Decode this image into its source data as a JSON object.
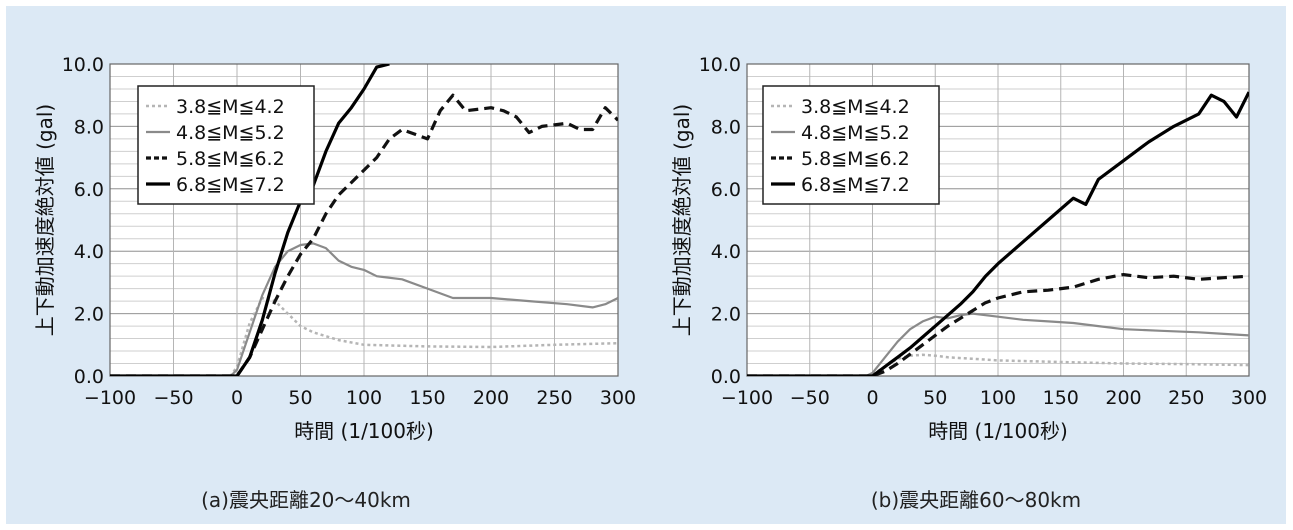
{
  "panels": [
    {
      "caption": "(a)震央距離20～40km",
      "ylabel": "上下動加速度絶対値 (gal)",
      "xlabel": "時間 (1/100秒)",
      "xticks": [
        "−100",
        "−50",
        "0",
        "50",
        "100",
        "150",
        "200",
        "250",
        "300"
      ],
      "yticks": [
        "0.0",
        "2.0",
        "4.0",
        "6.0",
        "8.0",
        "10.0"
      ]
    },
    {
      "caption": "(b)震央距離60～80km",
      "ylabel": "上下動加速度絶対値 (gal)",
      "xlabel": "時間 (1/100秒)",
      "xticks": [
        "−100",
        "−50",
        "0",
        "50",
        "100",
        "150",
        "200",
        "250",
        "300"
      ],
      "yticks": [
        "0.0",
        "2.0",
        "4.0",
        "6.0",
        "8.0",
        "10.0"
      ]
    }
  ],
  "chart_data": [
    {
      "type": "line",
      "xlabel": "時間 (1/100秒)",
      "ylabel": "上下動加速度絶対値 (gal)",
      "xlim": [
        -100,
        300
      ],
      "ylim": [
        0,
        10
      ],
      "grid": true,
      "legend_position": "top-left",
      "series": [
        {
          "name": "3.8≦M≦4.2",
          "style": "dotted-light",
          "color": "#b5b5b5",
          "x": [
            -100,
            -5,
            0,
            10,
            20,
            30,
            40,
            50,
            60,
            80,
            100,
            150,
            200,
            250,
            300
          ],
          "y": [
            0,
            0,
            0.3,
            1.7,
            2.5,
            2.4,
            2.0,
            1.6,
            1.4,
            1.15,
            1.0,
            0.95,
            0.93,
            1.0,
            1.05
          ]
        },
        {
          "name": "4.8≦M≦5.2",
          "style": "solid-gray",
          "color": "#8a8a8a",
          "x": [
            -100,
            -5,
            0,
            10,
            20,
            30,
            40,
            50,
            60,
            70,
            80,
            90,
            100,
            110,
            130,
            150,
            170,
            200,
            230,
            260,
            280,
            290,
            300
          ],
          "y": [
            0,
            0,
            0.2,
            1.4,
            2.6,
            3.5,
            4.0,
            4.2,
            4.25,
            4.1,
            3.7,
            3.5,
            3.4,
            3.2,
            3.1,
            2.8,
            2.5,
            2.5,
            2.4,
            2.3,
            2.2,
            2.3,
            2.5
          ]
        },
        {
          "name": "5.8≦M≦6.2",
          "style": "dashed",
          "color": "#111111",
          "x": [
            -100,
            0,
            10,
            20,
            30,
            40,
            50,
            60,
            70,
            80,
            90,
            100,
            110,
            120,
            130,
            150,
            160,
            170,
            180,
            200,
            210,
            220,
            230,
            240,
            260,
            270,
            280,
            290,
            300
          ],
          "y": [
            0,
            0,
            0.6,
            1.5,
            2.4,
            3.2,
            3.9,
            4.4,
            5.2,
            5.8,
            6.2,
            6.6,
            7.0,
            7.6,
            7.9,
            7.6,
            8.5,
            9.0,
            8.5,
            8.6,
            8.5,
            8.3,
            7.8,
            8.0,
            8.1,
            7.9,
            7.9,
            8.6,
            8.2
          ]
        },
        {
          "name": "6.8≦M≦7.2",
          "style": "solid-black",
          "color": "#000000",
          "x": [
            -100,
            0,
            10,
            20,
            30,
            40,
            50,
            60,
            70,
            80,
            90,
            100,
            110,
            120
          ],
          "y": [
            0,
            0,
            0.6,
            1.8,
            3.3,
            4.6,
            5.6,
            6.1,
            7.2,
            8.1,
            8.6,
            9.2,
            9.9,
            10.0
          ]
        }
      ]
    },
    {
      "type": "line",
      "xlabel": "時間 (1/100秒)",
      "ylabel": "上下動加速度絶対値 (gal)",
      "xlim": [
        -100,
        300
      ],
      "ylim": [
        0,
        10
      ],
      "grid": true,
      "legend_position": "top-left",
      "series": [
        {
          "name": "3.8≦M≦4.2",
          "style": "dotted-light",
          "color": "#b5b5b5",
          "x": [
            -100,
            -5,
            0,
            10,
            20,
            30,
            40,
            50,
            60,
            80,
            100,
            150,
            200,
            250,
            300
          ],
          "y": [
            0,
            0,
            0.05,
            0.3,
            0.55,
            0.65,
            0.68,
            0.65,
            0.6,
            0.55,
            0.5,
            0.45,
            0.4,
            0.38,
            0.35
          ]
        },
        {
          "name": "4.8≦M≦5.2",
          "style": "solid-gray",
          "color": "#8a8a8a",
          "x": [
            -100,
            -5,
            0,
            10,
            20,
            30,
            40,
            50,
            60,
            70,
            80,
            90,
            100,
            120,
            140,
            160,
            180,
            200,
            230,
            260,
            280,
            300
          ],
          "y": [
            0,
            0,
            0.1,
            0.6,
            1.1,
            1.5,
            1.75,
            1.9,
            1.85,
            1.95,
            2.0,
            1.95,
            1.9,
            1.8,
            1.75,
            1.7,
            1.6,
            1.5,
            1.45,
            1.4,
            1.35,
            1.3
          ]
        },
        {
          "name": "5.8≦M≦6.2",
          "style": "dashed",
          "color": "#111111",
          "x": [
            -100,
            0,
            10,
            20,
            30,
            40,
            50,
            60,
            70,
            80,
            90,
            100,
            120,
            140,
            160,
            180,
            200,
            220,
            240,
            260,
            280,
            300
          ],
          "y": [
            0,
            0,
            0.15,
            0.4,
            0.7,
            1.0,
            1.3,
            1.6,
            1.85,
            2.1,
            2.35,
            2.5,
            2.7,
            2.75,
            2.85,
            3.1,
            3.25,
            3.15,
            3.2,
            3.1,
            3.15,
            3.2
          ]
        },
        {
          "name": "6.8≦M≦7.2",
          "style": "solid-black",
          "color": "#000000",
          "x": [
            -100,
            0,
            10,
            20,
            30,
            40,
            50,
            60,
            70,
            80,
            90,
            100,
            120,
            140,
            160,
            170,
            180,
            200,
            220,
            240,
            260,
            270,
            280,
            290,
            300
          ],
          "y": [
            0,
            0,
            0.3,
            0.6,
            0.9,
            1.25,
            1.6,
            1.95,
            2.3,
            2.7,
            3.2,
            3.6,
            4.3,
            5.0,
            5.7,
            5.5,
            6.3,
            6.9,
            7.5,
            8.0,
            8.4,
            9.0,
            8.8,
            8.3,
            9.1
          ]
        }
      ]
    }
  ]
}
